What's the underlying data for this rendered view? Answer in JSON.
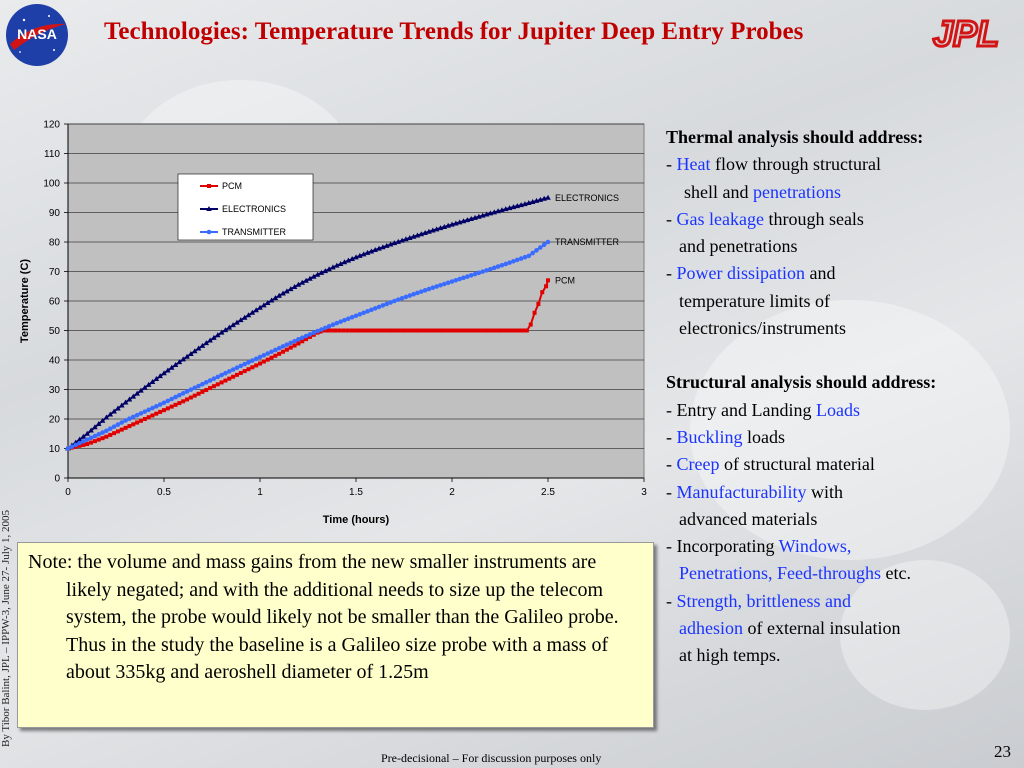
{
  "slide": {
    "title": "Technologies: Temperature Trends for Jupiter Deep Entry Probes",
    "logo_left": "NASA",
    "logo_right": "JPL",
    "vertical_credit": "By Tibor Balint, JPL – IPPW-3, June  27- July 1, 2005",
    "footer": "Pre-decisional – For discussion purposes only",
    "page_number": "23",
    "accent_color": "#c00000",
    "highlight_color": "#1a33ff"
  },
  "note": {
    "text": "Note: the volume and mass gains from the new smaller instruments are likely negated; and with the additional needs to size up the telecom system, the probe would likely not be smaller than the Galileo probe. Thus in the study the baseline is a Galileo size probe with a mass of about 335kg and aeroshell diameter of 1.25m",
    "background": "#ffffcc"
  },
  "right_panel": {
    "thermal_heading": "Thermal analysis should address:",
    "thermal_items": [
      {
        "pre": "- ",
        "hl": "Heat",
        "post": " flow through structural"
      },
      {
        "pre": "",
        "hl": "",
        "post": "shell and ",
        "hl2": "penetrations",
        "cont": true
      },
      {
        "pre": "- ",
        "hl": "Gas leakage",
        "post": " through seals"
      },
      {
        "pre": "",
        "hl": "",
        "post": "and penetrations",
        "cont": true
      },
      {
        "pre": "- ",
        "hl": "Power dissipation",
        "post": " and"
      },
      {
        "pre": "",
        "hl": "",
        "post": "temperature limits of",
        "cont": true
      },
      {
        "pre": "",
        "hl": "",
        "post": "electronics/instruments",
        "cont": true
      }
    ],
    "structural_heading": "Structural analysis should address:",
    "structural_items": [
      {
        "pre": "- Entry and Landing ",
        "hl": "Loads",
        "post": ""
      },
      {
        "pre": "- ",
        "hl": "Buckling",
        "post": " loads"
      },
      {
        "pre": "- ",
        "hl": "Creep",
        "post": " of structural material"
      },
      {
        "pre": "- ",
        "hl": "Manufacturability",
        "post": " with"
      },
      {
        "pre": "",
        "hl": "",
        "post": "advanced materials",
        "cont": true
      },
      {
        "pre": "- Incorporating ",
        "hl": "Windows,",
        "post": ""
      },
      {
        "pre": "",
        "hl": "Penetrations, Feed-throughs",
        "post": " etc.",
        "cont": true
      },
      {
        "pre": "- ",
        "hl": "Strength, brittleness and",
        "post": ""
      },
      {
        "pre": "",
        "hl": "adhesion",
        "post": " of external insulation",
        "cont": true
      },
      {
        "pre": "",
        "hl": "",
        "post": "at high temps.",
        "cont": true
      }
    ]
  },
  "chart_data": {
    "type": "line",
    "title": "",
    "xlabel": "Time (hours)",
    "ylabel": "Temperature (C)",
    "xlim": [
      0,
      3
    ],
    "ylim": [
      0,
      120
    ],
    "x_ticks": [
      "0",
      "0.5",
      "1",
      "1.5",
      "2",
      "2.5",
      "3"
    ],
    "y_ticks": [
      "0",
      "10",
      "20",
      "30",
      "40",
      "50",
      "60",
      "70",
      "80",
      "90",
      "100",
      "110",
      "120"
    ],
    "grid": true,
    "legend_position": "top-left",
    "plot_background": "#c0c0c0",
    "series": [
      {
        "name": "PCM",
        "color": "#e00000",
        "marker": "square",
        "end_label": "PCM",
        "points": [
          [
            0,
            10
          ],
          [
            0.1,
            11.5
          ],
          [
            0.2,
            14
          ],
          [
            0.3,
            17
          ],
          [
            0.4,
            20
          ],
          [
            0.5,
            23
          ],
          [
            0.6,
            26
          ],
          [
            0.7,
            29.2
          ],
          [
            0.8,
            32.4
          ],
          [
            0.9,
            35.6
          ],
          [
            1.0,
            38.8
          ],
          [
            1.1,
            42.1
          ],
          [
            1.2,
            45.6
          ],
          [
            1.3,
            49.3
          ],
          [
            1.33,
            50
          ],
          [
            1.5,
            50
          ],
          [
            1.7,
            50
          ],
          [
            1.9,
            50
          ],
          [
            2.1,
            50
          ],
          [
            2.3,
            50
          ],
          [
            2.39,
            50
          ],
          [
            2.41,
            52
          ],
          [
            2.43,
            56
          ],
          [
            2.45,
            59
          ],
          [
            2.47,
            63
          ],
          [
            2.49,
            65
          ],
          [
            2.5,
            67
          ]
        ]
      },
      {
        "name": "ELECTRONICS",
        "color": "#000066",
        "marker": "triangle",
        "end_label": "ELECTRONICS",
        "points": [
          [
            0,
            10
          ],
          [
            0.1,
            15
          ],
          [
            0.2,
            20.5
          ],
          [
            0.3,
            25.6
          ],
          [
            0.4,
            30.6
          ],
          [
            0.5,
            35.5
          ],
          [
            0.6,
            40.2
          ],
          [
            0.7,
            44.8
          ],
          [
            0.8,
            49.3
          ],
          [
            0.9,
            53.5
          ],
          [
            1.0,
            57.7
          ],
          [
            1.1,
            61.8
          ],
          [
            1.2,
            65.5
          ],
          [
            1.3,
            68.9
          ],
          [
            1.4,
            72
          ],
          [
            1.5,
            74.8
          ],
          [
            1.6,
            77.3
          ],
          [
            1.7,
            79.6
          ],
          [
            1.8,
            81.8
          ],
          [
            1.9,
            83.9
          ],
          [
            2.0,
            85.9
          ],
          [
            2.1,
            87.8
          ],
          [
            2.2,
            89.7
          ],
          [
            2.3,
            91.5
          ],
          [
            2.4,
            93.2
          ],
          [
            2.5,
            95
          ]
        ]
      },
      {
        "name": "TRANSMITTER",
        "color": "#3a6cff",
        "marker": "circle",
        "end_label": "TRANSMITTER",
        "points": [
          [
            0,
            10
          ],
          [
            0.1,
            13
          ],
          [
            0.2,
            16
          ],
          [
            0.3,
            19.5
          ],
          [
            0.4,
            22.5
          ],
          [
            0.5,
            25.5
          ],
          [
            0.6,
            28.7
          ],
          [
            0.7,
            31.8
          ],
          [
            0.8,
            34.9
          ],
          [
            0.9,
            38
          ],
          [
            1.0,
            41
          ],
          [
            1.1,
            44
          ],
          [
            1.2,
            47
          ],
          [
            1.3,
            49.8
          ],
          [
            1.4,
            52.5
          ],
          [
            1.5,
            55
          ],
          [
            1.6,
            57.5
          ],
          [
            1.7,
            60
          ],
          [
            1.8,
            62.3
          ],
          [
            1.9,
            64.5
          ],
          [
            2.0,
            66.6
          ],
          [
            2.1,
            68.7
          ],
          [
            2.2,
            70.8
          ],
          [
            2.3,
            73
          ],
          [
            2.4,
            75.3
          ],
          [
            2.5,
            80
          ]
        ]
      }
    ]
  }
}
